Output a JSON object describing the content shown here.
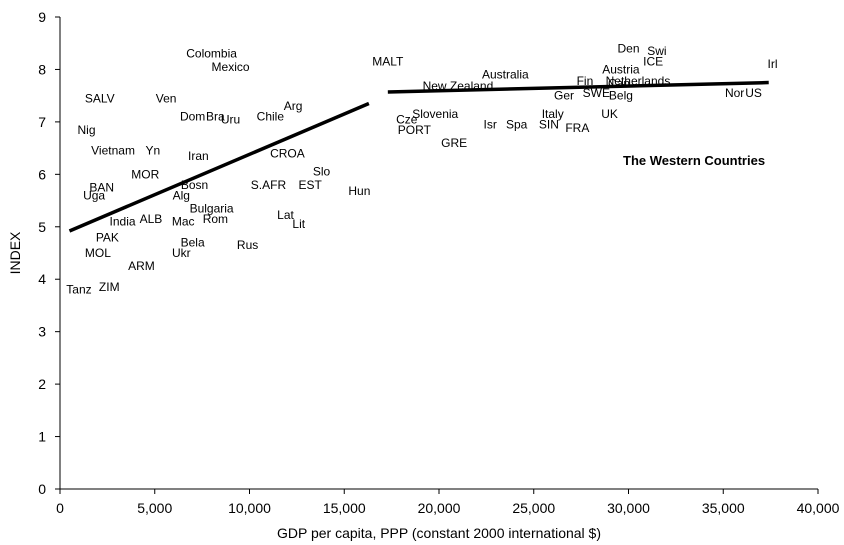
{
  "chart_data": {
    "type": "scatter",
    "title": "",
    "xlabel": "GDP per capita, PPP (constant 2000 international $)",
    "ylabel": "INDEX",
    "xlim": [
      0,
      40000
    ],
    "ylim": [
      0,
      9
    ],
    "xticks": [
      0,
      5000,
      10000,
      15000,
      20000,
      25000,
      30000,
      35000,
      40000
    ],
    "xtick_labels": [
      "0",
      "5,000",
      "10,000",
      "15,000",
      "20,000",
      "25,000",
      "30,000",
      "35,000",
      "40,000"
    ],
    "yticks": [
      0,
      1,
      2,
      3,
      4,
      5,
      6,
      7,
      8,
      9
    ],
    "ytick_labels": [
      "0",
      "1",
      "2",
      "3",
      "4",
      "5",
      "6",
      "7",
      "8",
      "9"
    ],
    "grid": false,
    "annotation": "The Western Countries",
    "points": [
      {
        "label": "Colombia",
        "x": 8000,
        "y": 8.3
      },
      {
        "label": "Mexico",
        "x": 9000,
        "y": 8.05
      },
      {
        "label": "SALV",
        "x": 2100,
        "y": 7.45
      },
      {
        "label": "Ven",
        "x": 5600,
        "y": 7.45
      },
      {
        "label": "Arg",
        "x": 12300,
        "y": 7.3
      },
      {
        "label": "Dom",
        "x": 7000,
        "y": 7.1
      },
      {
        "label": "Bra",
        "x": 8200,
        "y": 7.1
      },
      {
        "label": "Uru",
        "x": 9000,
        "y": 7.05
      },
      {
        "label": "Chile",
        "x": 11100,
        "y": 7.1
      },
      {
        "label": "Nig",
        "x": 1400,
        "y": 6.85
      },
      {
        "label": "Vietnam",
        "x": 2800,
        "y": 6.45
      },
      {
        "label": "Yn",
        "x": 4900,
        "y": 6.45
      },
      {
        "label": "Iran",
        "x": 7300,
        "y": 6.35
      },
      {
        "label": "CROA",
        "x": 12000,
        "y": 6.4
      },
      {
        "label": "MOR",
        "x": 4500,
        "y": 6.0
      },
      {
        "label": "Slo",
        "x": 13800,
        "y": 6.05
      },
      {
        "label": "BAN",
        "x": 2200,
        "y": 5.75
      },
      {
        "label": "Bosn",
        "x": 7100,
        "y": 5.8
      },
      {
        "label": "S.AFR",
        "x": 11000,
        "y": 5.8
      },
      {
        "label": "EST",
        "x": 13200,
        "y": 5.8
      },
      {
        "label": "Hun",
        "x": 15800,
        "y": 5.68
      },
      {
        "label": "Uga",
        "x": 1800,
        "y": 5.6
      },
      {
        "label": "Alg",
        "x": 6400,
        "y": 5.6
      },
      {
        "label": "Bulgaria",
        "x": 8000,
        "y": 5.35
      },
      {
        "label": "Lat",
        "x": 11900,
        "y": 5.22
      },
      {
        "label": "Lit",
        "x": 12600,
        "y": 5.05
      },
      {
        "label": "India",
        "x": 3300,
        "y": 5.1
      },
      {
        "label": "ALB",
        "x": 4800,
        "y": 5.15
      },
      {
        "label": "Mac",
        "x": 6500,
        "y": 5.1
      },
      {
        "label": "Rom",
        "x": 8200,
        "y": 5.15
      },
      {
        "label": "PAK",
        "x": 2500,
        "y": 4.8
      },
      {
        "label": "Bela",
        "x": 7000,
        "y": 4.7
      },
      {
        "label": "Rus",
        "x": 9900,
        "y": 4.65
      },
      {
        "label": "MOL",
        "x": 2000,
        "y": 4.5
      },
      {
        "label": "Ukr",
        "x": 6400,
        "y": 4.5
      },
      {
        "label": "ARM",
        "x": 4300,
        "y": 4.25
      },
      {
        "label": "Tanz",
        "x": 1000,
        "y": 3.8
      },
      {
        "label": "ZIM",
        "x": 2600,
        "y": 3.85
      },
      {
        "label": "MALT",
        "x": 17300,
        "y": 8.15
      },
      {
        "label": "Australia",
        "x": 23500,
        "y": 7.9
      },
      {
        "label": "Den",
        "x": 30000,
        "y": 8.4
      },
      {
        "label": "Swi",
        "x": 31500,
        "y": 8.35
      },
      {
        "label": "ICE",
        "x": 31300,
        "y": 8.15
      },
      {
        "label": "Irl",
        "x": 37600,
        "y": 8.1
      },
      {
        "label": "Austria",
        "x": 29600,
        "y": 8.0
      },
      {
        "label": "Fin",
        "x": 27700,
        "y": 7.78
      },
      {
        "label": "Can",
        "x": 29500,
        "y": 7.73
      },
      {
        "label": "Netherlands",
        "x": 30500,
        "y": 7.78
      },
      {
        "label": "New Zealand",
        "x": 21000,
        "y": 7.68
      },
      {
        "label": "Ger",
        "x": 26600,
        "y": 7.5
      },
      {
        "label": "SWE",
        "x": 28300,
        "y": 7.55
      },
      {
        "label": "Belg",
        "x": 29600,
        "y": 7.5
      },
      {
        "label": "Nor",
        "x": 35600,
        "y": 7.55
      },
      {
        "label": "US",
        "x": 36600,
        "y": 7.55
      },
      {
        "label": "Slovenia",
        "x": 19800,
        "y": 7.15
      },
      {
        "label": "Cze",
        "x": 18300,
        "y": 7.05
      },
      {
        "label": "PORT",
        "x": 18700,
        "y": 6.85
      },
      {
        "label": "Isr",
        "x": 22700,
        "y": 6.95
      },
      {
        "label": "Spa",
        "x": 24100,
        "y": 6.95
      },
      {
        "label": "Italy",
        "x": 26000,
        "y": 7.15
      },
      {
        "label": "UK",
        "x": 29000,
        "y": 7.15
      },
      {
        "label": "SIN",
        "x": 25800,
        "y": 6.95
      },
      {
        "label": "FRA",
        "x": 27300,
        "y": 6.88
      },
      {
        "label": "GRE",
        "x": 20800,
        "y": 6.6
      }
    ],
    "trendlines": [
      {
        "x": [
          500,
          16300
        ],
        "y": [
          4.92,
          7.35
        ]
      },
      {
        "x": [
          17300,
          37400
        ],
        "y": [
          7.57,
          7.75
        ]
      }
    ]
  }
}
